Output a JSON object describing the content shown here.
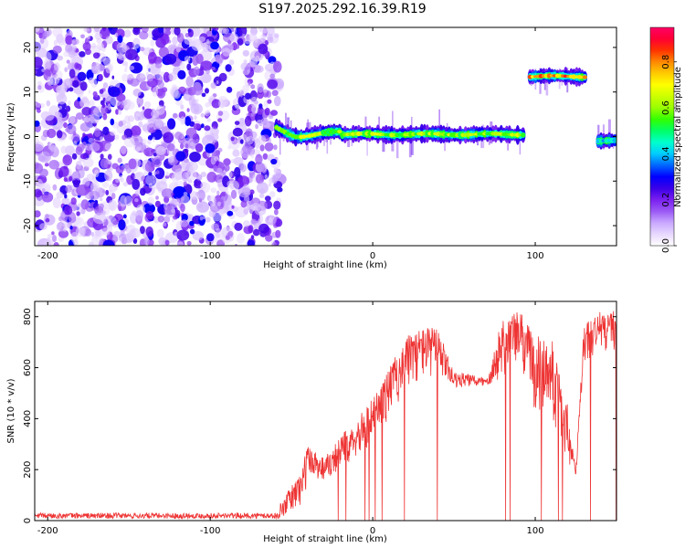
{
  "title": "S197.2025.292.16.39.R19",
  "chart_data": [
    {
      "type": "heatmap",
      "xlabel": "Height of straight line (km)",
      "ylabel": "Frequency (Hz)",
      "xlim": [
        -208,
        150
      ],
      "ylim": [
        -24.5,
        24.5
      ],
      "xticks": [
        -200,
        -100,
        0,
        100
      ],
      "yticks": [
        -20,
        -10,
        0,
        10,
        20
      ],
      "colorbar": {
        "label": "Normalized spectral amplitude",
        "range": [
          0,
          0.95
        ],
        "ticks": [
          0,
          0.2,
          0.4,
          0.6,
          0.8
        ],
        "colors": [
          "#ffffff",
          "#e8d8ff",
          "#c9a8ff",
          "#9b59f5",
          "#7a1ff0",
          "#3a00e8",
          "#0000ff",
          "#0066ff",
          "#00ccff",
          "#00ffcc",
          "#00ff66",
          "#33ff00",
          "#99ff00",
          "#ccff00",
          "#ffff00",
          "#ffcc00",
          "#ff8800",
          "#ff3300",
          "#ff0033",
          "#ff0066"
        ]
      },
      "tone_segments": [
        {
          "x": [
            -60,
            93
          ],
          "freq": 0.5,
          "peak": 0.7
        },
        {
          "x": [
            96,
            130
          ],
          "freq": 13.5,
          "peak": 0.9
        },
        {
          "x": [
            138,
            150
          ],
          "freq": -1,
          "peak": 0.5
        }
      ],
      "noise_region": {
        "x": [
          -208,
          -57
        ],
        "freq": [
          -24.5,
          24.5
        ],
        "level": 0.15
      }
    },
    {
      "type": "line",
      "xlabel": "Height of straight line (km)",
      "ylabel": "SNR (10 * v/v)",
      "xlim": [
        -208,
        150
      ],
      "ylim": [
        0,
        860
      ],
      "xticks": [
        -200,
        -100,
        0,
        100
      ],
      "yticks": [
        0,
        200,
        400,
        600,
        800
      ],
      "color": "#ee3333",
      "envelope": {
        "x": [
          -208,
          -60,
          -44,
          -40,
          -30,
          -20,
          -10,
          0,
          10,
          20,
          30,
          40,
          50,
          55,
          70,
          80,
          90,
          100,
          110,
          120,
          125,
          130,
          140,
          150
        ],
        "upper": [
          35,
          35,
          200,
          300,
          250,
          330,
          400,
          480,
          600,
          720,
          760,
          760,
          580,
          580,
          560,
          800,
          830,
          730,
          720,
          450,
          200,
          780,
          820,
          830
        ],
        "lower": [
          0,
          0,
          40,
          150,
          150,
          200,
          250,
          300,
          400,
          500,
          550,
          550,
          520,
          520,
          520,
          550,
          600,
          400,
          400,
          200,
          160,
          600,
          650,
          660
        ]
      }
    }
  ]
}
